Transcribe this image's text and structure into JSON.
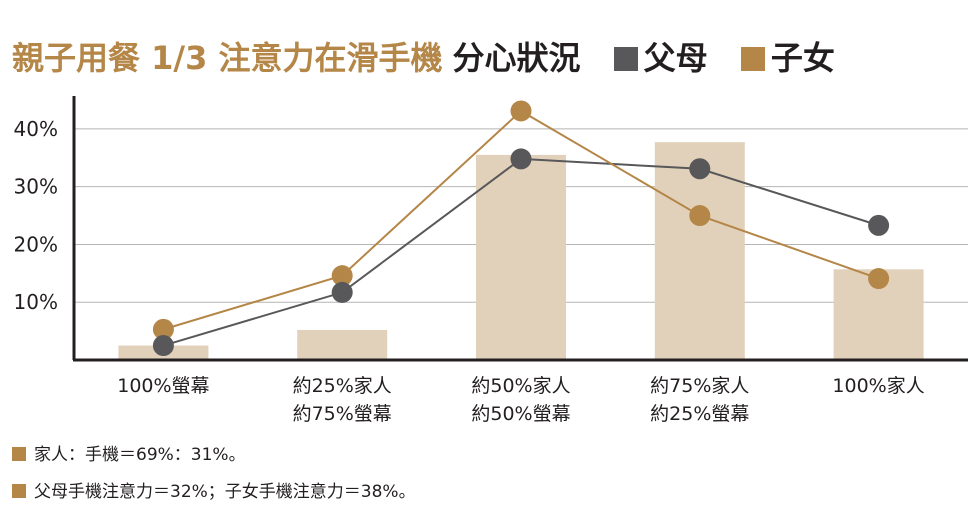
{
  "title": {
    "main": "親子用餐 1/3 注意力在滑手機",
    "sub": "分心狀況"
  },
  "colors": {
    "accent": "#b48647",
    "parent": "#58585a",
    "bar": "#e2d1ba",
    "grid": "#b5b5b5",
    "axis": "#231f20"
  },
  "chart_data": {
    "type": "bar",
    "categories": [
      [
        "100%螢幕"
      ],
      [
        "約25%家人",
        "約75%螢幕"
      ],
      [
        "約50%家人",
        "約50%螢幕"
      ],
      [
        "約75%家人",
        "約25%螢幕"
      ],
      [
        "100%家人"
      ]
    ],
    "bars": [
      2.5,
      5.2,
      35.5,
      37.7,
      15.7
    ],
    "series": [
      {
        "name": "父母",
        "type": "line",
        "color": "#58585a",
        "values": [
          2.5,
          11.7,
          34.8,
          33.1,
          23.3
        ]
      },
      {
        "name": "子女",
        "type": "line",
        "color": "#b48647",
        "values": [
          5.3,
          14.6,
          43.1,
          25.0,
          14.1
        ]
      }
    ],
    "ylim": [
      0,
      45
    ],
    "yticks": [
      10,
      20,
      30,
      40
    ],
    "ytick_labels": [
      "10%",
      "20%",
      "30%",
      "40%"
    ],
    "grid": true
  },
  "notes": [
    "家人：手機＝69%：31%。",
    "父母手機注意力＝32%；子女手機注意力＝38%。"
  ]
}
